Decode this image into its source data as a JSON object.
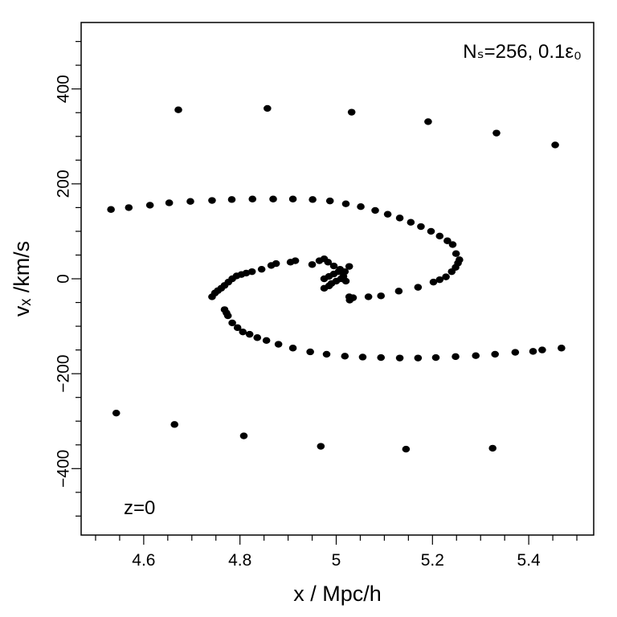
{
  "chart_data": {
    "type": "scatter",
    "title": "",
    "xlabel": "x / Mpc/h",
    "ylabel": "vₓ /km/s",
    "xlim": [
      4.47,
      5.535
    ],
    "ylim": [
      -540,
      540
    ],
    "x_ticks": [
      4.6,
      4.8,
      5.0,
      5.2,
      5.4
    ],
    "x_tick_labels": [
      "4.6",
      "4.8",
      "5",
      "5.2",
      "5.4"
    ],
    "y_ticks": [
      -400,
      -200,
      0,
      200,
      400
    ],
    "y_tick_labels": [
      "−400",
      "−200",
      "0",
      "200",
      "400"
    ],
    "grid": false,
    "legend": "none",
    "marker_color": "#000000",
    "annotations": {
      "top_right": "Nₛ=256, 0.1ε₀",
      "bottom_left": "z=0"
    },
    "points": [
      [
        4.672,
        356
      ],
      [
        4.857,
        359
      ],
      [
        5.032,
        351
      ],
      [
        5.191,
        331
      ],
      [
        5.333,
        307
      ],
      [
        5.455,
        282
      ],
      [
        4.543,
        -283
      ],
      [
        4.664,
        -307
      ],
      [
        4.808,
        -331
      ],
      [
        4.968,
        -353
      ],
      [
        5.145,
        -359
      ],
      [
        5.325,
        -357
      ],
      [
        4.532,
        146
      ],
      [
        4.569,
        150
      ],
      [
        4.613,
        155
      ],
      [
        4.653,
        160
      ],
      [
        4.697,
        163
      ],
      [
        4.742,
        165
      ],
      [
        4.783,
        167
      ],
      [
        4.826,
        168
      ],
      [
        4.869,
        168
      ],
      [
        4.91,
        168
      ],
      [
        4.951,
        167
      ],
      [
        4.987,
        164
      ],
      [
        5.02,
        158
      ],
      [
        5.051,
        152
      ],
      [
        5.081,
        144
      ],
      [
        5.107,
        136
      ],
      [
        5.132,
        128
      ],
      [
        5.155,
        119
      ],
      [
        5.176,
        110
      ],
      [
        5.197,
        100
      ],
      [
        5.215,
        90
      ],
      [
        5.231,
        80
      ],
      [
        5.242,
        72
      ],
      [
        5.249,
        53
      ],
      [
        5.256,
        40
      ],
      [
        5.253,
        33
      ],
      [
        5.248,
        24
      ],
      [
        5.24,
        15
      ],
      [
        5.228,
        4
      ],
      [
        5.215,
        -2
      ],
      [
        5.202,
        -7
      ],
      [
        5.17,
        -18
      ],
      [
        5.13,
        -26
      ],
      [
        5.093,
        -36
      ],
      [
        5.067,
        -38
      ],
      [
        4.742,
        -38
      ],
      [
        4.748,
        -30
      ],
      [
        4.754,
        -25
      ],
      [
        4.761,
        -20
      ],
      [
        4.768,
        -14
      ],
      [
        4.776,
        -7
      ],
      [
        4.784,
        0
      ],
      [
        4.793,
        6
      ],
      [
        4.803,
        9
      ],
      [
        4.813,
        12
      ],
      [
        4.825,
        15
      ],
      [
        4.845,
        20
      ],
      [
        4.865,
        28
      ],
      [
        4.875,
        32
      ],
      [
        4.905,
        35
      ],
      [
        4.915,
        38
      ],
      [
        4.95,
        30
      ],
      [
        4.965,
        38
      ],
      [
        4.975,
        42
      ],
      [
        4.983,
        35
      ],
      [
        4.995,
        27
      ],
      [
        5.008,
        20
      ],
      [
        5.018,
        15
      ],
      [
        5.027,
        26
      ],
      [
        4.975,
        0
      ],
      [
        4.985,
        5
      ],
      [
        4.995,
        10
      ],
      [
        5.005,
        15
      ],
      [
        5.015,
        5
      ],
      [
        5.02,
        -5
      ],
      [
        4.975,
        -20
      ],
      [
        4.985,
        -15
      ],
      [
        4.99,
        -10
      ],
      [
        5.0,
        -5
      ],
      [
        5.01,
        0
      ],
      [
        5.027,
        -38
      ],
      [
        5.035,
        -40
      ],
      [
        5.028,
        -45
      ],
      [
        4.768,
        -65
      ],
      [
        4.772,
        -72
      ],
      [
        4.775,
        -78
      ],
      [
        4.784,
        -93
      ],
      [
        4.795,
        -103
      ],
      [
        4.806,
        -112
      ],
      [
        4.82,
        -117
      ],
      [
        4.836,
        -124
      ],
      [
        4.855,
        -130
      ],
      [
        4.88,
        -138
      ],
      [
        4.91,
        -146
      ],
      [
        4.946,
        -154
      ],
      [
        4.98,
        -159
      ],
      [
        5.018,
        -163
      ],
      [
        5.055,
        -165
      ],
      [
        5.093,
        -166
      ],
      [
        5.132,
        -167
      ],
      [
        5.17,
        -167
      ],
      [
        5.207,
        -166
      ],
      [
        5.248,
        -164
      ],
      [
        5.29,
        -162
      ],
      [
        5.33,
        -159
      ],
      [
        5.372,
        -155
      ],
      [
        5.409,
        -153
      ],
      [
        5.428,
        -150
      ],
      [
        5.468,
        -146
      ]
    ]
  }
}
